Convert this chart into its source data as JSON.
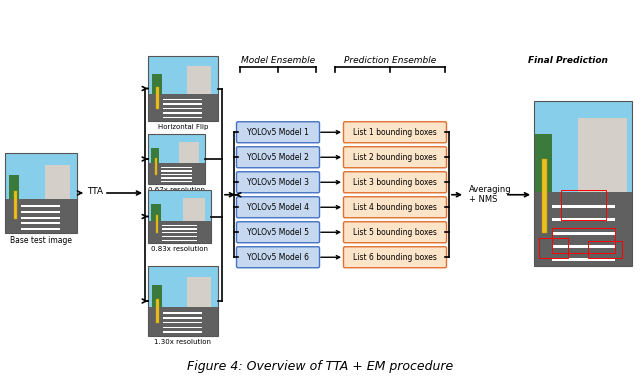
{
  "title": "Figure 4: Overview of TTA + EM procedure",
  "bg_color": "#ffffff",
  "model_boxes": [
    "YOLOv5 Model 1",
    "YOLOv5 Model 2",
    "YOLOv5 Model 3",
    "YOLOv5 Model 4",
    "YOLOv5 Model 5",
    "YOLOv5 Model 6"
  ],
  "pred_boxes": [
    "List 1 bounding boxes",
    "List 2 bounding boxes",
    "List 3 bounding boxes",
    "List 4 bounding boxes",
    "List 5 bounding boxes",
    "List 6 bounding boxes"
  ],
  "tta_labels": [
    "Horizontal Flip",
    "0.67x resolution",
    "0.83x resolution",
    "1.30x resolution"
  ],
  "base_label": "Base test image",
  "tta_label": "TTA",
  "averaging_label": "Averaging\n+ NMS",
  "model_ensemble_label": "Model Ensemble",
  "prediction_ensemble_label": "Prediction Ensemble",
  "final_prediction_label": "Final Prediction",
  "model_box_facecolor": "#c5d8f0",
  "model_box_edgecolor": "#4472c4",
  "pred_box_facecolor": "#fce4c8",
  "pred_box_edgecolor": "#e07030",
  "arrow_color": "#000000",
  "text_color": "#000000"
}
